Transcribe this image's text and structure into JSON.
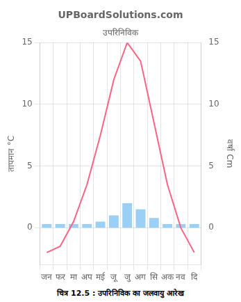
{
  "chart_data": {
    "type": "bar",
    "title": "UPBoardSolutions.com",
    "subtitle": "उपरिनिविक",
    "caption": "चित्र 12.5 : उपरिनिविक का जलवायु आरेख",
    "y_label": "तापमान °C",
    "y2_label": "वर्षा Cm",
    "categories": [
      "जन",
      "फर",
      "मा",
      "अप",
      "मई",
      "जू",
      "जु",
      "अग",
      "सि",
      "अक",
      "नव",
      "दि"
    ],
    "series": [
      {
        "type": "bar",
        "axis": "y2",
        "values": [
          0.3,
          0.3,
          0.3,
          0.3,
          0.5,
          1.0,
          2.0,
          1.5,
          0.8,
          0.3,
          0.3,
          0.3
        ]
      },
      {
        "type": "line",
        "values": [
          -2.0,
          -1.5,
          0.5,
          3.5,
          7.5,
          12.0,
          15.0,
          13.5,
          8.5,
          3.5,
          0.0,
          -2.0
        ]
      }
    ],
    "ylim": [
      -3,
      15
    ],
    "yticks": [
      0,
      5,
      10,
      15
    ],
    "y2lim": [
      -3,
      15
    ],
    "y2ticks": [
      0,
      5,
      10,
      15
    ],
    "grid": true
  }
}
